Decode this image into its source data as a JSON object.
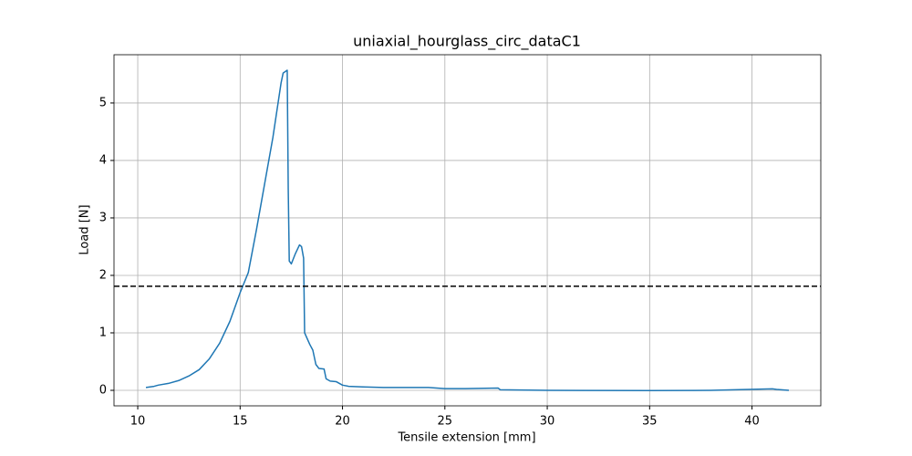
{
  "chart_data": {
    "type": "line",
    "title": "uniaxial_hourglass_circ_dataC1",
    "xlabel": "Tensile extension [mm]",
    "ylabel": "Load [N]",
    "x": [
      10.4,
      10.6,
      10.8,
      11,
      11.5,
      12,
      12.5,
      13,
      13.5,
      14,
      14.5,
      15,
      15.4,
      15.8,
      16.2,
      16.6,
      17,
      17.1,
      17.3,
      17.35,
      17.4,
      17.5,
      17.7,
      17.9,
      18.0,
      18.1,
      18.15,
      18.4,
      18.55,
      18.7,
      18.85,
      19.1,
      19.2,
      19.4,
      19.7,
      20,
      20.3,
      21,
      22,
      23,
      24.2,
      25,
      26,
      27.6,
      27.7,
      30,
      35,
      38,
      41,
      41.2,
      41.8
    ],
    "series": [
      {
        "color": "#1f77b4",
        "values": [
          0.05,
          0.06,
          0.07,
          0.09,
          0.12,
          0.17,
          0.25,
          0.36,
          0.55,
          0.82,
          1.2,
          1.7,
          2.05,
          2.8,
          3.6,
          4.4,
          5.35,
          5.52,
          5.57,
          3.5,
          2.25,
          2.2,
          2.38,
          2.53,
          2.5,
          2.3,
          1.0,
          0.8,
          0.7,
          0.45,
          0.38,
          0.37,
          0.2,
          0.16,
          0.15,
          0.09,
          0.07,
          0.06,
          0.05,
          0.05,
          0.05,
          0.03,
          0.03,
          0.04,
          0.01,
          0.0,
          -0.005,
          0.0,
          0.025,
          0.015,
          0.0
        ]
      }
    ],
    "reference_line": {
      "value": 1.81,
      "color": "#000000",
      "style": "dashed"
    },
    "xlim": [
      8.84,
      43.36
    ],
    "ylim": [
      -0.27,
      5.84
    ],
    "xticks": [
      10,
      15,
      20,
      25,
      30,
      35,
      40
    ],
    "yticks": [
      0,
      1,
      2,
      3,
      4,
      5
    ],
    "grid": true
  }
}
